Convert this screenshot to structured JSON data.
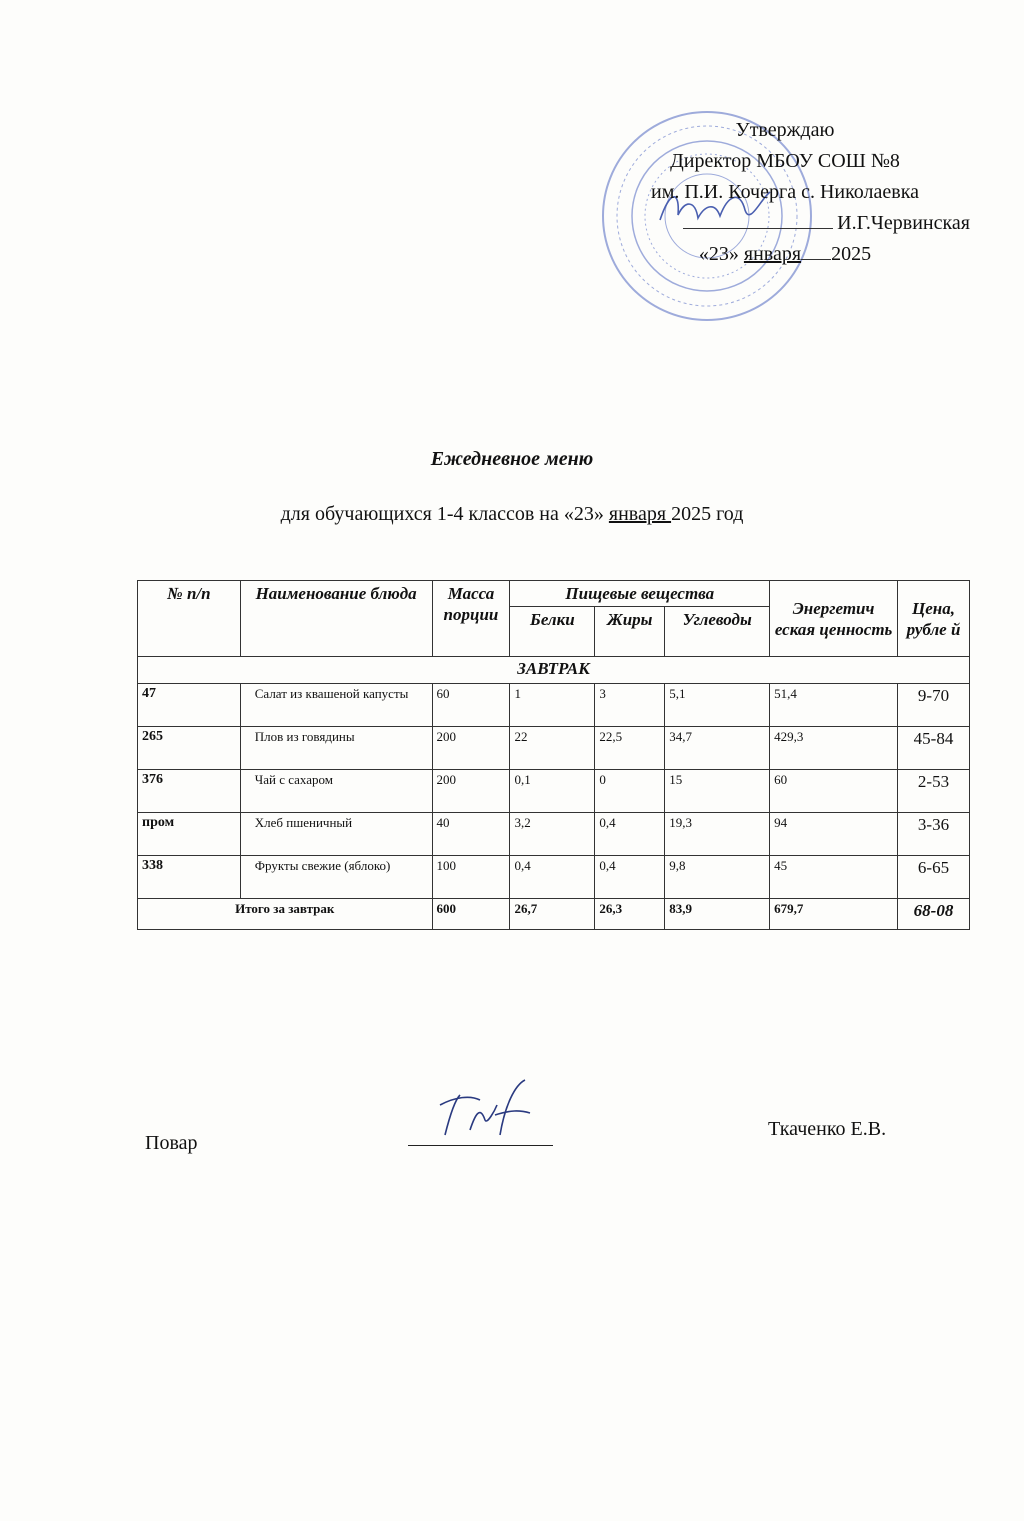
{
  "approval": {
    "line1": "Утверждаю",
    "line2": "Директор МБОУ СОШ №8",
    "line3": "им. П.И. Кочерга с. Николаевка",
    "line4": "И.Г.Червинская",
    "date_day": "«23»",
    "date_month": "января",
    "date_year": "2025"
  },
  "title": "Ежедневное меню",
  "subtitle": {
    "before": "для обучающихся 1-4 классов на «23» ",
    "month": "января ",
    "after": "2025 год"
  },
  "table": {
    "headers": {
      "num": "№ п/п",
      "name": "Наименование блюда",
      "mass": "Масса порции",
      "nutrients": "Пищевые вещества",
      "protein": "Белки",
      "fat": "Жиры",
      "carbs": "Углеводы",
      "energy": "Энергетич еская ценность",
      "price": "Цена, рубле й"
    },
    "section": "ЗАВТРАК",
    "rows": [
      {
        "num": "47",
        "name": "Салат из квашеной капусты",
        "mass": "60",
        "protein": "1",
        "fat": "3",
        "carbs": "5,1",
        "energy": "51,4",
        "price": "9-70"
      },
      {
        "num": "265",
        "name": "Плов из говядины",
        "mass": "200",
        "protein": "22",
        "fat": "22,5",
        "carbs": "34,7",
        "energy": "429,3",
        "price": "45-84"
      },
      {
        "num": "376",
        "name": "Чай с сахаром",
        "mass": "200",
        "protein": "0,1",
        "fat": "0",
        "carbs": "15",
        "energy": "60",
        "price": "2-53"
      },
      {
        "num": "пром",
        "name": "Хлеб пшеничный",
        "mass": "40",
        "protein": "3,2",
        "fat": "0,4",
        "carbs": "19,3",
        "energy": "94",
        "price": "3-36"
      },
      {
        "num": "338",
        "name": "Фрукты свежие (яблоко)",
        "mass": "100",
        "protein": "0,4",
        "fat": "0,4",
        "carbs": "9,8",
        "energy": "45",
        "price": "6-65"
      }
    ],
    "total": {
      "label": "Итого за завтрак",
      "mass": "600",
      "protein": "26,7",
      "fat": "26,3",
      "carbs": "83,9",
      "energy": "679,7",
      "price": "68-08"
    }
  },
  "footer": {
    "role": "Повар",
    "name": "Ткаченко Е.В."
  },
  "colors": {
    "stamp": "#5a6fc0",
    "ink": "#111111"
  }
}
